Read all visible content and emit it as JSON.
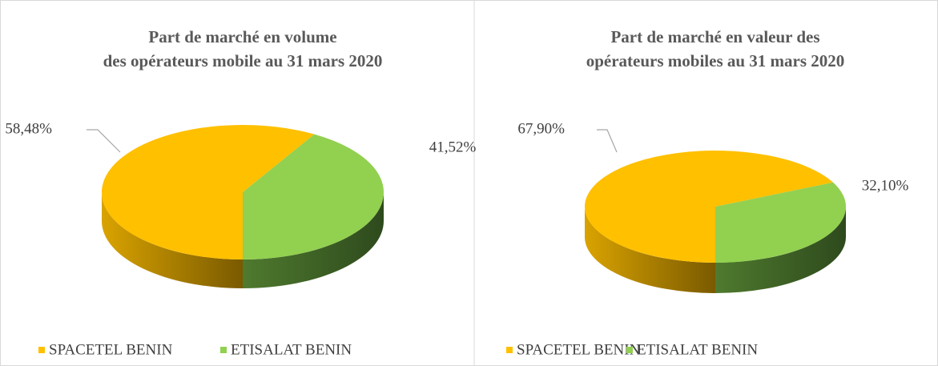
{
  "chart_data": [
    {
      "type": "pie",
      "title": "Part de marché en volume des opérateurs mobile au 31 mars 2020",
      "categories": [
        "SPACETEL BENIN",
        "ETISALAT BENIN"
      ],
      "values": [
        58.48,
        41.52
      ],
      "value_labels": [
        "58,48%",
        "41,52%"
      ],
      "colors": [
        "#FFC000",
        "#92D050"
      ],
      "legend": "bottom"
    },
    {
      "type": "pie",
      "title": "Part de marché en valeur des opérateurs mobiles au 31 mars 2020",
      "categories": [
        "SPACETEL BENIN",
        "ETISALAT BENIN"
      ],
      "values": [
        67.9,
        32.1
      ],
      "value_labels": [
        "67,90%",
        "32,10%"
      ],
      "colors": [
        "#FFC000",
        "#92D050"
      ],
      "legend": "bottom"
    }
  ]
}
